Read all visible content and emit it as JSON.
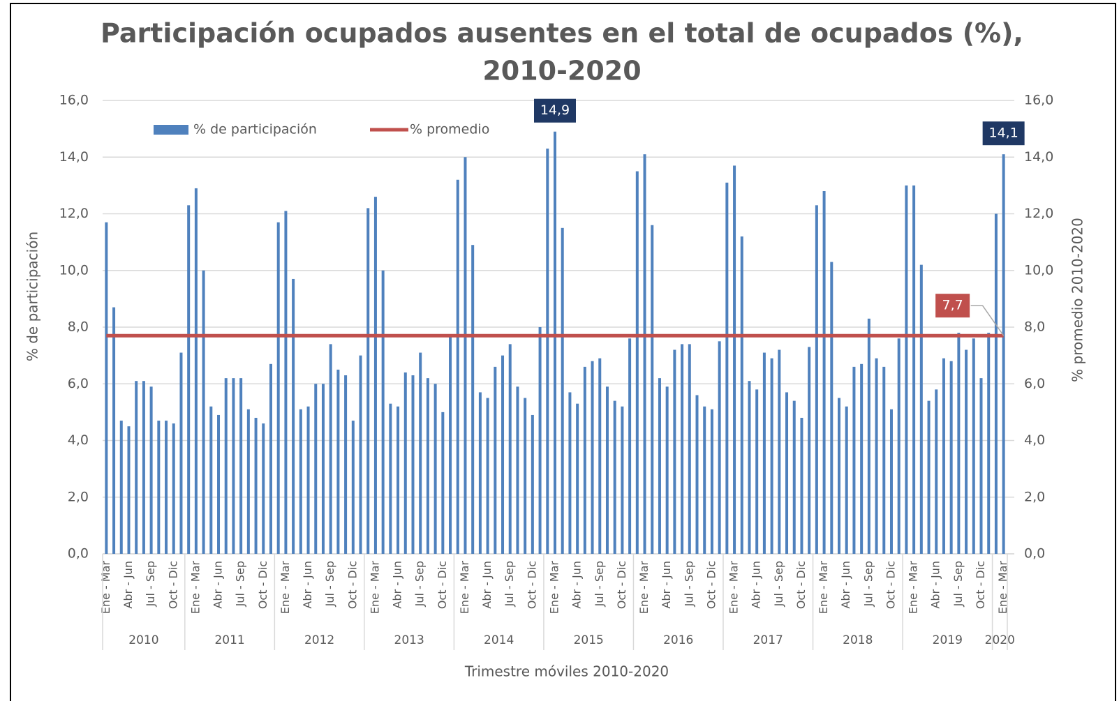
{
  "chart_data": {
    "type": "bar",
    "title": [
      "Participación ocupados ausentes en el total de ocupados (%),",
      "2010-2020"
    ],
    "x_label": "Trimestre móviles 2010-2020",
    "y_label": "% de participación",
    "y2_label": "% promedio 2010-2020",
    "categories": [
      "Ene - Mar",
      null,
      null,
      "Abr - Jun",
      null,
      null,
      "Jul - Sep",
      null,
      null,
      "Oct - Dic",
      null,
      null,
      "Ene - Mar",
      null,
      null,
      "Abr - Jun",
      null,
      null,
      "Jul - Sep",
      null,
      null,
      "Oct - Dic",
      null,
      null,
      "Ene - Mar",
      null,
      null,
      "Abr - Jun",
      null,
      null,
      "Jul - Sep",
      null,
      null,
      "Oct - Dic",
      null,
      null,
      "Ene - Mar",
      null,
      null,
      "Abr - Jun",
      null,
      null,
      "Jul - Sep",
      null,
      null,
      "Oct - Dic",
      null,
      null,
      "Ene - Mar",
      null,
      null,
      "Abr - Jun",
      null,
      null,
      "Jul - Sep",
      null,
      null,
      "Oct - Dic",
      null,
      null,
      "Ene - Mar",
      null,
      null,
      "Abr - Jun",
      null,
      null,
      "Jul - Sep",
      null,
      null,
      "Oct - Dic",
      null,
      null,
      "Ene - Mar",
      null,
      null,
      "Abr - Jun",
      null,
      null,
      "Jul - Sep",
      null,
      null,
      "Oct - Dic",
      null,
      null,
      "Ene - Mar",
      null,
      null,
      "Abr - Jun",
      null,
      null,
      "Jul - Sep",
      null,
      null,
      "Oct - Dic",
      null,
      null,
      "Ene - Mar",
      null,
      null,
      "Abr - Jun",
      null,
      null,
      "Jul - Sep",
      null,
      null,
      "Oct - Dic",
      null,
      null,
      "Ene - Mar",
      null,
      null,
      "Abr - Jun",
      null,
      null,
      "Jul - Sep",
      null,
      null,
      "Oct - Dic",
      null,
      null,
      "Ene - Mar"
    ],
    "category_groups": [
      {
        "label": "2010",
        "size": 11
      },
      {
        "label": "2011",
        "size": 12
      },
      {
        "label": "2012",
        "size": 12
      },
      {
        "label": "2013",
        "size": 12
      },
      {
        "label": "2014",
        "size": 12
      },
      {
        "label": "2015",
        "size": 12
      },
      {
        "label": "2016",
        "size": 12
      },
      {
        "label": "2017",
        "size": 12
      },
      {
        "label": "2018",
        "size": 12
      },
      {
        "label": "2019",
        "size": 12
      },
      {
        "label": "2020",
        "size": 2
      }
    ],
    "series": [
      {
        "name": "% de participación",
        "type": "bar",
        "color": "#4f81bd",
        "values": [
          11.7,
          8.7,
          4.7,
          4.5,
          6.1,
          6.1,
          5.9,
          4.7,
          4.7,
          4.6,
          7.1,
          12.3,
          12.9,
          10.0,
          5.2,
          4.9,
          6.2,
          6.2,
          6.2,
          5.1,
          4.8,
          4.6,
          6.7,
          11.7,
          12.1,
          9.7,
          5.1,
          5.2,
          6.0,
          6.0,
          7.4,
          6.5,
          6.3,
          4.7,
          7.0,
          12.2,
          12.6,
          10.0,
          5.3,
          5.2,
          6.4,
          6.3,
          7.1,
          6.2,
          6.0,
          5.0,
          7.7,
          13.2,
          14.0,
          10.9,
          5.7,
          5.5,
          6.6,
          7.0,
          7.4,
          5.9,
          5.5,
          4.9,
          8.0,
          14.3,
          14.9,
          11.5,
          5.7,
          5.3,
          6.6,
          6.8,
          6.9,
          5.9,
          5.4,
          5.2,
          7.6,
          13.5,
          14.1,
          11.6,
          6.2,
          5.9,
          7.2,
          7.4,
          7.4,
          5.6,
          5.2,
          5.1,
          7.5,
          13.1,
          13.7,
          11.2,
          6.1,
          5.8,
          7.1,
          6.9,
          7.2,
          5.7,
          5.4,
          4.8,
          7.3,
          12.3,
          12.8,
          10.3,
          5.5,
          5.2,
          6.6,
          6.7,
          8.3,
          6.9,
          6.6,
          5.1,
          7.6,
          13.0,
          13.0,
          10.2,
          5.4,
          5.8,
          6.9,
          6.8,
          7.8,
          7.2,
          7.6,
          6.2,
          7.8,
          12.0,
          14.1
        ],
        "value_labels": [
          null,
          null,
          null,
          null,
          null,
          null,
          null,
          null,
          null,
          null,
          null,
          null,
          null,
          null,
          null,
          null,
          null,
          null,
          null,
          null,
          null,
          null,
          null,
          null,
          null,
          null,
          null,
          null,
          null,
          null,
          null,
          null,
          null,
          null,
          null,
          null,
          null,
          null,
          null,
          null,
          null,
          null,
          null,
          null,
          null,
          null,
          null,
          null,
          null,
          null,
          null,
          null,
          null,
          null,
          null,
          null,
          null,
          null,
          null,
          null,
          "14,9",
          null,
          null,
          null,
          null,
          null,
          null,
          null,
          null,
          null,
          null,
          null,
          null,
          null,
          null,
          null,
          null,
          null,
          null,
          null,
          null,
          null,
          null,
          null,
          null,
          null,
          null,
          null,
          null,
          null,
          null,
          null,
          null,
          null,
          null,
          null,
          null,
          null,
          null,
          null,
          null,
          null,
          null,
          null,
          null,
          null,
          null,
          null,
          null,
          null,
          null,
          null,
          null,
          null,
          null,
          null,
          null,
          null,
          null,
          null,
          "14,1"
        ]
      },
      {
        "name": "% promedio",
        "type": "line",
        "axis": "y2",
        "color": "#c0504d",
        "values": [
          7.7,
          7.7,
          7.7,
          7.7,
          7.7,
          7.7,
          7.7,
          7.7,
          7.7,
          7.7,
          7.7,
          7.7,
          7.7,
          7.7,
          7.7,
          7.7,
          7.7,
          7.7,
          7.7,
          7.7,
          7.7,
          7.7,
          7.7,
          7.7,
          7.7,
          7.7,
          7.7,
          7.7,
          7.7,
          7.7,
          7.7,
          7.7,
          7.7,
          7.7,
          7.7,
          7.7,
          7.7,
          7.7,
          7.7,
          7.7,
          7.7,
          7.7,
          7.7,
          7.7,
          7.7,
          7.7,
          7.7,
          7.7,
          7.7,
          7.7,
          7.7,
          7.7,
          7.7,
          7.7,
          7.7,
          7.7,
          7.7,
          7.7,
          7.7,
          7.7,
          7.7,
          7.7,
          7.7,
          7.7,
          7.7,
          7.7,
          7.7,
          7.7,
          7.7,
          7.7,
          7.7,
          7.7,
          7.7,
          7.7,
          7.7,
          7.7,
          7.7,
          7.7,
          7.7,
          7.7,
          7.7,
          7.7,
          7.7,
          7.7,
          7.7,
          7.7,
          7.7,
          7.7,
          7.7,
          7.7,
          7.7,
          7.7,
          7.7,
          7.7,
          7.7,
          7.7,
          7.7,
          7.7,
          7.7,
          7.7,
          7.7,
          7.7,
          7.7,
          7.7,
          7.7,
          7.7,
          7.7,
          7.7,
          7.7,
          7.7,
          7.7,
          7.7,
          7.7,
          7.7,
          7.7,
          7.7,
          7.7,
          7.7,
          7.7,
          7.7,
          7.7
        ],
        "value_labels": [
          null,
          null,
          null,
          null,
          null,
          null,
          null,
          null,
          null,
          null,
          null,
          null,
          null,
          null,
          null,
          null,
          null,
          null,
          null,
          null,
          null,
          null,
          null,
          null,
          null,
          null,
          null,
          null,
          null,
          null,
          null,
          null,
          null,
          null,
          null,
          null,
          null,
          null,
          null,
          null,
          null,
          null,
          null,
          null,
          null,
          null,
          null,
          null,
          null,
          null,
          null,
          null,
          null,
          null,
          null,
          null,
          null,
          null,
          null,
          null,
          null,
          null,
          null,
          null,
          null,
          null,
          null,
          null,
          null,
          null,
          null,
          null,
          null,
          null,
          null,
          null,
          null,
          null,
          null,
          null,
          null,
          null,
          null,
          null,
          null,
          null,
          null,
          null,
          null,
          null,
          null,
          null,
          null,
          null,
          null,
          null,
          null,
          null,
          null,
          null,
          null,
          null,
          null,
          null,
          null,
          null,
          null,
          null,
          null,
          null,
          null,
          null,
          null,
          null,
          null,
          null,
          null,
          null,
          null,
          null,
          "7,7"
        ]
      }
    ],
    "ylim": [
      0,
      16
    ],
    "yticks": [
      {
        "value": 0,
        "label": "0,0"
      },
      {
        "value": 2,
        "label": "2,0"
      },
      {
        "value": 4,
        "label": "4,0"
      },
      {
        "value": 6,
        "label": "6,0"
      },
      {
        "value": 8,
        "label": "8,0"
      },
      {
        "value": 10,
        "label": "10,0"
      },
      {
        "value": 12,
        "label": "12,0"
      },
      {
        "value": 14,
        "label": "14,0"
      },
      {
        "value": 16,
        "label": "16,0"
      }
    ],
    "y2lim": [
      0,
      16
    ],
    "y2ticks": [
      {
        "value": 0,
        "label": "0,0"
      },
      {
        "value": 2,
        "label": "2,0"
      },
      {
        "value": 4,
        "label": "4,0"
      },
      {
        "value": 6,
        "label": "6,0"
      },
      {
        "value": 8,
        "label": "8,0"
      },
      {
        "value": 10,
        "label": "10,0"
      },
      {
        "value": 12,
        "label": "12,0"
      },
      {
        "value": 14,
        "label": "14,0"
      },
      {
        "value": 16,
        "label": "16,0"
      }
    ],
    "grid": true,
    "legend": "top-left"
  }
}
